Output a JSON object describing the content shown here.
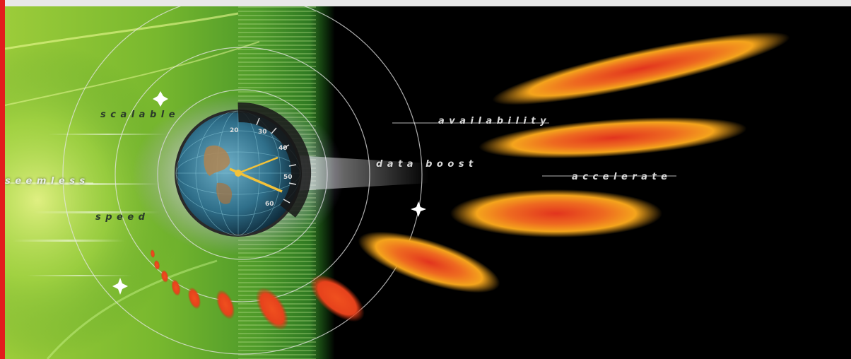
{
  "banner": {
    "words": {
      "scalable": "scalable",
      "seemless": "seemless",
      "speed": "speed",
      "availability": "availability",
      "data_boost": "data boost",
      "accelerate": "accelerate"
    },
    "gauge_ticks": [
      "20",
      "30",
      "40",
      "50",
      "60"
    ],
    "colors": {
      "frame": "#e8e8e8",
      "left_edge": "#e21d1d",
      "green": "#5fae2a",
      "background": "#000000",
      "streak_outer": "#f2a21a",
      "streak_inner": "#e23a1f"
    },
    "icons": [
      "globe-speedometer-icon",
      "sparkle-star-icon"
    ]
  }
}
